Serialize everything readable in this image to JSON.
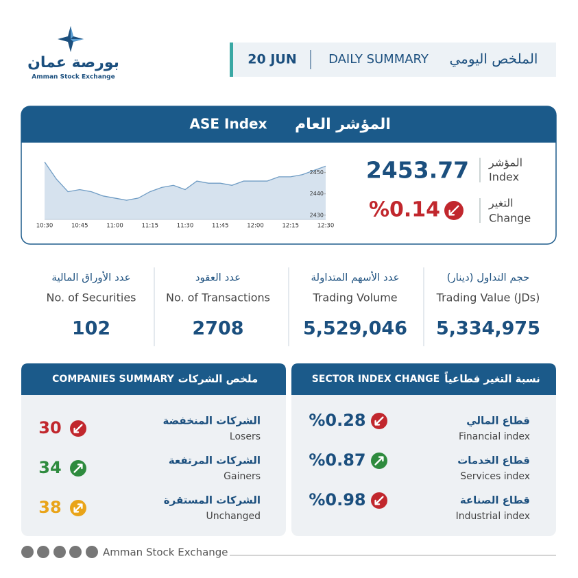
{
  "header": {
    "logo_arabic": "بورصة عمان",
    "logo_english": "Amman Stock Exchange",
    "date": "20 JUN",
    "title_english": "DAILY SUMMARY",
    "title_arabic": "الملخص اليومي"
  },
  "index_card": {
    "title_english": "ASE Index",
    "title_arabic": "المؤشر العام",
    "index_value": "2453.77",
    "index_label_arabic": "المؤشر",
    "index_label_english": "Index",
    "change_value": "%0.14",
    "change_direction": "down",
    "change_label_arabic": "التغير",
    "change_label_english": "Change"
  },
  "chart_data": {
    "type": "area",
    "categories": [
      "10:30",
      null,
      null,
      "10:45",
      null,
      null,
      "11:00",
      null,
      null,
      "11:15",
      null,
      null,
      "11:30",
      null,
      null,
      "11:45",
      null,
      null,
      "12:00",
      null,
      null,
      "12:15",
      null,
      null,
      "12:30"
    ],
    "values": [
      2455,
      2447,
      2441,
      2442,
      2441,
      2439,
      2438,
      2437,
      2438,
      2441,
      2443,
      2444,
      2442,
      2446,
      2445,
      2445,
      2444,
      2446,
      2446,
      2446,
      2448,
      2448,
      2449,
      2451,
      2453
    ],
    "ylim": [
      2428,
      2456
    ],
    "yticks": [
      2430,
      2440,
      2450
    ],
    "color": "#6f9cc4",
    "fill": "#d6e2ee"
  },
  "stats": [
    {
      "label_arabic": "حجم التداول (دينار)",
      "label_english": "Trading Value (JDs)",
      "value": "5,334,975"
    },
    {
      "label_arabic": "عدد الأسهم المتداولة",
      "label_english": "Trading Volume",
      "value": "5,529,046"
    },
    {
      "label_arabic": "عدد العقود",
      "label_english": "No. of Transactions",
      "value": 2708
    },
    {
      "label_arabic": "عدد الأوراق المالية",
      "label_english": "No. of Securities",
      "value": 102
    }
  ],
  "companies_summary": {
    "title_english": "COMPANIES SUMMARY",
    "title_arabic": "ملخص الشركات",
    "rows": [
      {
        "label_arabic": "الشركات المنخفضة",
        "label_english": "Losers",
        "value": 30,
        "direction": "down"
      },
      {
        "label_arabic": "الشركات المرتفعة",
        "label_english": "Gainers",
        "value": 34,
        "direction": "up"
      },
      {
        "label_arabic": "الشركات المستقرة",
        "label_english": "Unchanged",
        "value": 38,
        "direction": "flat"
      }
    ]
  },
  "sector_index_change": {
    "title_english": "SECTOR INDEX CHANGE",
    "title_arabic": "نسبة التغير قطاعياً",
    "rows": [
      {
        "label_arabic": "قطاع المالي",
        "label_english": "Financial index",
        "value": "%0.28",
        "direction": "down"
      },
      {
        "label_arabic": "قطاع الخدمات",
        "label_english": "Services index",
        "value": "%0.87",
        "direction": "up"
      },
      {
        "label_arabic": "قطاع الصناعة",
        "label_english": "Industrial index",
        "value": "%0.98",
        "direction": "down"
      }
    ]
  },
  "footer": {
    "text": "Amman Stock Exchange"
  }
}
